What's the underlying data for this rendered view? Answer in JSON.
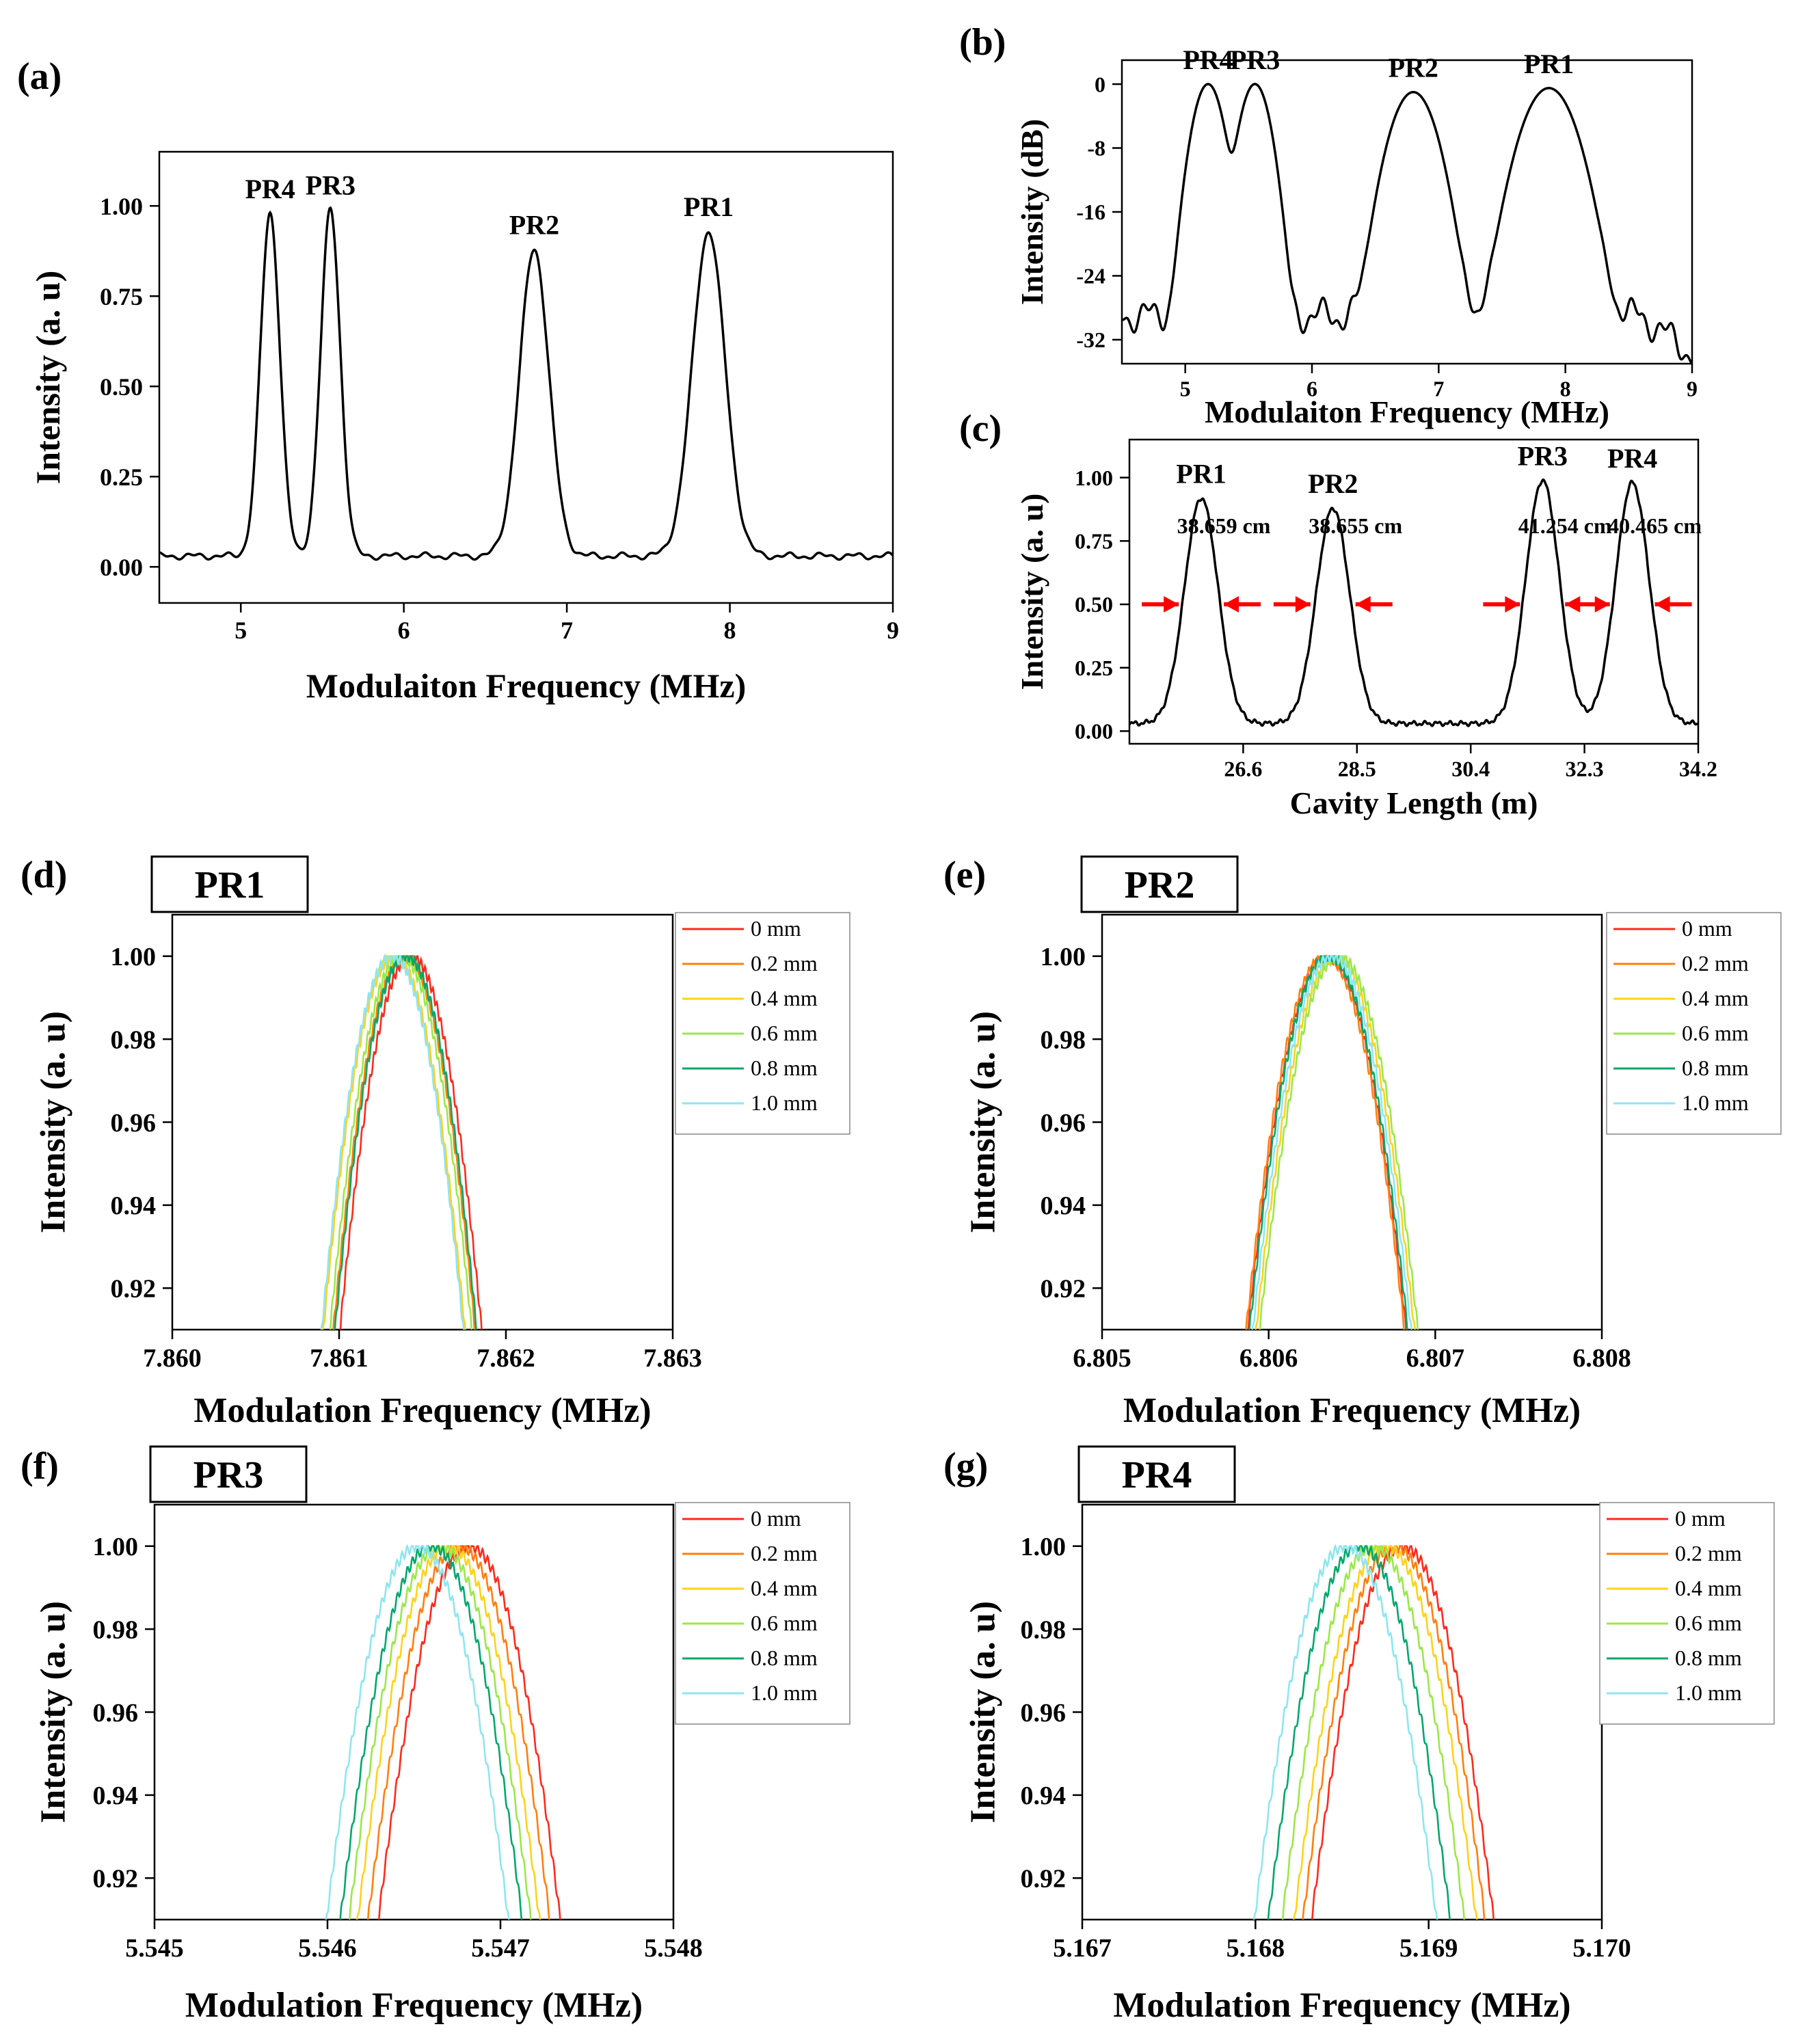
{
  "chart_data": [
    {
      "id": "a",
      "panel_label": "(a)",
      "type": "line",
      "xlabel": "Modulaiton Frequency (MHz)",
      "ylabel": "Intensity (a. u)",
      "xlim": [
        4.5,
        9.0
      ],
      "ylim": [
        -0.1,
        1.15
      ],
      "xticks": [
        5,
        6,
        7,
        8,
        9
      ],
      "yticks": [
        0.0,
        0.25,
        0.5,
        0.75,
        1.0
      ],
      "xtick_labels": [
        "5",
        "6",
        "7",
        "8",
        "9"
      ],
      "ytick_labels": [
        "0.00",
        "0.25",
        "0.50",
        "0.75",
        "1.00"
      ],
      "baseline": 0.03,
      "peaks": [
        {
          "label": "PR4",
          "x": 5.18,
          "y": 0.98,
          "width": 0.06
        },
        {
          "label": "PR3",
          "x": 5.55,
          "y": 0.99,
          "width": 0.06
        },
        {
          "label": "PR2",
          "x": 6.8,
          "y": 0.88,
          "width": 0.09
        },
        {
          "label": "PR1",
          "x": 7.87,
          "y": 0.93,
          "width": 0.1
        }
      ]
    },
    {
      "id": "b",
      "panel_label": "(b)",
      "type": "line",
      "xlabel": "Modulaiton Frequency (MHz)",
      "ylabel": "Intensity (dB)",
      "xlim": [
        4.5,
        9.0
      ],
      "ylim": [
        -35,
        3
      ],
      "xticks": [
        5,
        6,
        7,
        8,
        9
      ],
      "yticks": [
        0,
        -8,
        -16,
        -24,
        -32
      ],
      "xtick_labels": [
        "5",
        "6",
        "7",
        "8",
        "9"
      ],
      "ytick_labels": [
        "0",
        "-8",
        "-16",
        "-24",
        "-32"
      ],
      "baseline": -29,
      "peaks": [
        {
          "label": "PR4",
          "x": 5.18,
          "y": 0,
          "width": 0.08
        },
        {
          "label": "PR3",
          "x": 5.55,
          "y": 0,
          "width": 0.08
        },
        {
          "label": "PR2",
          "x": 6.8,
          "y": -1,
          "width": 0.12
        },
        {
          "label": "PR1",
          "x": 7.87,
          "y": -0.5,
          "width": 0.14
        }
      ]
    },
    {
      "id": "c",
      "panel_label": "(c)",
      "type": "line",
      "xlabel": "Cavity Length (m)",
      "ylabel": "Intensity (a. u)",
      "xlim": [
        24.7,
        34.2
      ],
      "ylim": [
        -0.05,
        1.15
      ],
      "xticks": [
        26.6,
        28.5,
        30.4,
        32.3,
        34.2
      ],
      "yticks": [
        0.0,
        0.25,
        0.5,
        0.75,
        1.0
      ],
      "xtick_labels": [
        "26.6",
        "28.5",
        "30.4",
        "32.3",
        "34.2"
      ],
      "ytick_labels": [
        "0.00",
        "0.25",
        "0.50",
        "0.75",
        "1.00"
      ],
      "baseline": 0.03,
      "peaks": [
        {
          "label": "PR1",
          "x": 25.9,
          "y": 0.92,
          "width": 0.28
        },
        {
          "label": "PR2",
          "x": 28.1,
          "y": 0.88,
          "width": 0.28
        },
        {
          "label": "PR3",
          "x": 31.6,
          "y": 0.99,
          "width": 0.28
        },
        {
          "label": "PR4",
          "x": 33.1,
          "y": 0.98,
          "width": 0.28
        }
      ],
      "fwhm_annotations": [
        "38.659 cm",
        "38.655 cm",
        "41.254 cm",
        "40.465 cm"
      ]
    },
    {
      "id": "d",
      "panel_label": "(d)",
      "tag": "PR1",
      "type": "line",
      "xlabel": "Modulation Frequency (MHz)",
      "ylabel": "Intensity (a. u)",
      "xlim": [
        7.86,
        7.863
      ],
      "ylim": [
        0.91,
        1.01
      ],
      "xticks": [
        7.86,
        7.861,
        7.862,
        7.863
      ],
      "yticks": [
        0.92,
        0.94,
        0.96,
        0.98,
        1.0
      ],
      "xtick_labels": [
        "7.860",
        "7.861",
        "7.862",
        "7.863"
      ],
      "ytick_labels": [
        "0.92",
        "0.94",
        "0.96",
        "0.98",
        "1.00"
      ],
      "half_width": 0.00042,
      "series": [
        {
          "name": "0 mm",
          "center": 7.86143
        },
        {
          "name": "0.2 mm",
          "center": 7.86139
        },
        {
          "name": "0.4 mm",
          "center": 7.86133
        },
        {
          "name": "0.6 mm",
          "center": 7.86137
        },
        {
          "name": "0.8 mm",
          "center": 7.8614
        },
        {
          "name": "1.0 mm",
          "center": 7.86132
        }
      ]
    },
    {
      "id": "e",
      "panel_label": "(e)",
      "tag": "PR2",
      "type": "line",
      "xlabel": "Modulation Frequency (MHz)",
      "ylabel": "Intensity (a. u)",
      "xlim": [
        6.805,
        6.808
      ],
      "ylim": [
        0.91,
        1.01
      ],
      "xticks": [
        6.805,
        6.806,
        6.807,
        6.808
      ],
      "yticks": [
        0.92,
        0.94,
        0.96,
        0.98,
        1.0
      ],
      "xtick_labels": [
        "6.805",
        "6.806",
        "6.807",
        "6.808"
      ],
      "ytick_labels": [
        "0.92",
        "0.94",
        "0.96",
        "0.98",
        "1.00"
      ],
      "half_width": 0.00047,
      "series": [
        {
          "name": "0 mm",
          "center": 6.80635
        },
        {
          "name": "0.2 mm",
          "center": 6.80634
        },
        {
          "name": "0.4 mm",
          "center": 6.8064
        },
        {
          "name": "0.6 mm",
          "center": 6.80642
        },
        {
          "name": "0.8 mm",
          "center": 6.80636
        },
        {
          "name": "1.0 mm",
          "center": 6.80638
        }
      ]
    },
    {
      "id": "f",
      "panel_label": "(f)",
      "tag": "PR3",
      "type": "line",
      "xlabel": "Modulation Frequency (MHz)",
      "ylabel": "Intensity (a. u)",
      "xlim": [
        5.545,
        5.548
      ],
      "ylim": [
        0.91,
        1.01
      ],
      "xticks": [
        5.545,
        5.546,
        5.547,
        5.548
      ],
      "yticks": [
        0.92,
        0.94,
        0.96,
        0.98,
        1.0
      ],
      "xtick_labels": [
        "5.545",
        "5.546",
        "5.547",
        "5.548"
      ],
      "ytick_labels": [
        "0.92",
        "0.94",
        "0.96",
        "0.98",
        "1.00"
      ],
      "half_width": 0.00052,
      "series": [
        {
          "name": "0 mm",
          "center": 5.54682
        },
        {
          "name": "0.2 mm",
          "center": 5.54676
        },
        {
          "name": "0.4 mm",
          "center": 5.5467
        },
        {
          "name": "0.6 mm",
          "center": 5.54665
        },
        {
          "name": "0.8 mm",
          "center": 5.5466
        },
        {
          "name": "1.0 mm",
          "center": 5.54652
        }
      ]
    },
    {
      "id": "g",
      "panel_label": "(g)",
      "tag": "PR4",
      "type": "line",
      "xlabel": "Modulation Frequency (MHz)",
      "ylabel": "Intensity (a. u)",
      "xlim": [
        5.167,
        5.17
      ],
      "ylim": [
        0.91,
        1.01
      ],
      "xticks": [
        5.167,
        5.168,
        5.169,
        5.17
      ],
      "yticks": [
        0.92,
        0.94,
        0.96,
        0.98,
        1.0
      ],
      "xtick_labels": [
        "5.167",
        "5.168",
        "5.169",
        "5.170"
      ],
      "ytick_labels": [
        "0.92",
        "0.94",
        "0.96",
        "0.98",
        "1.00"
      ],
      "half_width": 0.00052,
      "series": [
        {
          "name": "0 mm",
          "center": 5.16885
        },
        {
          "name": "0.2 mm",
          "center": 5.1688
        },
        {
          "name": "0.4 mm",
          "center": 5.16875
        },
        {
          "name": "0.6 mm",
          "center": 5.16868
        },
        {
          "name": "0.8 mm",
          "center": 5.1686
        },
        {
          "name": "1.0 mm",
          "center": 5.16852
        }
      ]
    }
  ],
  "legend_colors": [
    "#ff2a1a",
    "#ff7f0e",
    "#ffd21a",
    "#9be84a",
    "#00a86b",
    "#8ee6f0"
  ],
  "annotation_arrow_color": "#ff0000"
}
